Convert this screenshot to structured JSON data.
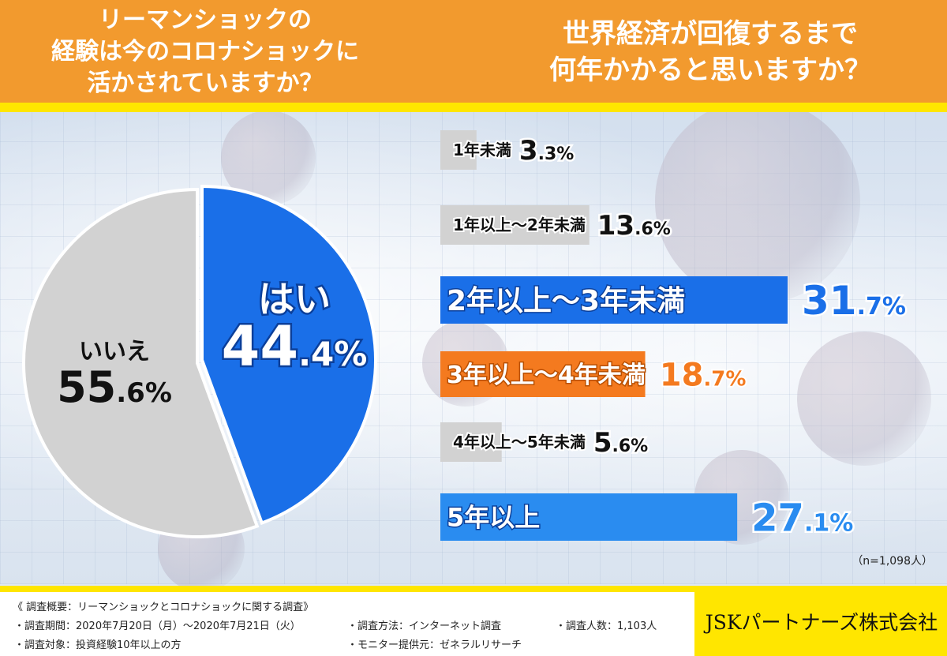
{
  "header": {
    "left_question_lines": [
      "リーマンショックの",
      "経験は今のコロナショックに",
      "活かされていますか？"
    ],
    "right_question_lines": [
      "世界経済が回復するまで",
      "何年かかると思いますか？"
    ]
  },
  "note": "（n=1,098人）",
  "footer": {
    "overview": "《 調査概要：リーマンショックとコロナショックに関する調査》",
    "period": "・調査期間：2020年7月20日（月）〜2020年7月21日（火）",
    "target": "・調査対象：投資経験10年以上の方",
    "method": "・調査方法：インターネット調査",
    "provider": "・モニター提供元：ゼネラルリサーチ",
    "respondents": "・調査人数：1,103人",
    "company": "JSKパートナーズ株式会社"
  },
  "colors": {
    "orange": "#f29a2e",
    "yellow": "#ffe600",
    "blue": "#1a6fe8",
    "lightblue": "#2a8cf0",
    "accent_orange": "#f47a1f",
    "gray": "#d2d2d2"
  },
  "chart_data": [
    {
      "type": "pie",
      "title": "リーマンショックの経験は今のコロナショックに活かされていますか？",
      "slices": [
        {
          "label": "はい",
          "value": 44.4,
          "display_int": "44",
          "display_dec": ".4%",
          "color": "#1a6fe8"
        },
        {
          "label": "いいえ",
          "value": 55.6,
          "display_int": "55",
          "display_dec": ".6%",
          "color": "#d2d2d2"
        }
      ]
    },
    {
      "type": "bar",
      "title": "世界経済が回復するまで何年かかると思いますか？",
      "n": 1098,
      "categories": [
        "1年未満",
        "1年以上〜2年未満",
        "2年以上〜3年未満",
        "3年以上〜4年未満",
        "4年以上〜5年未満",
        "5年以上"
      ],
      "values": [
        3.3,
        13.6,
        31.7,
        18.7,
        5.6,
        27.1
      ],
      "display_int": [
        "3",
        "13",
        "31",
        "18",
        "5",
        "27"
      ],
      "display_dec": [
        ".3%",
        ".6%",
        ".7%",
        ".7%",
        ".6%",
        ".1%"
      ],
      "styles": [
        "minor",
        "minor",
        "major-blue",
        "major-orange",
        "minor",
        "major-lightblue"
      ]
    }
  ]
}
